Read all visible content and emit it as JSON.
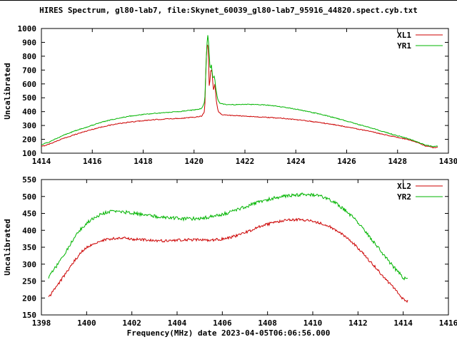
{
  "title": "HIRES Spectrum, gl80-lab7, file:Skynet_60039_gl80-lab7_95916_44820.spect.cyb.txt",
  "colors": {
    "axis_label": "#006600",
    "text": "#000000",
    "border": "#000000",
    "red_series": "#cc0000",
    "green_series": "#00b400"
  },
  "chart_data": [
    {
      "type": "line",
      "title": "",
      "xlabel": "",
      "ylabel": "Uncalibrated",
      "xlim": [
        1414,
        1430
      ],
      "ylim": [
        100,
        1000
      ],
      "xticks": [
        1414,
        1416,
        1418,
        1420,
        1422,
        1424,
        1426,
        1428,
        1430
      ],
      "yticks": [
        100,
        200,
        300,
        400,
        500,
        600,
        700,
        800,
        900,
        1000
      ],
      "grid": false,
      "legend_position": "top-right",
      "series": [
        {
          "name": "XL1",
          "color": "#cc0000",
          "noise": 3,
          "points": [
            [
              1414.0,
              148
            ],
            [
              1414.3,
              165
            ],
            [
              1414.7,
              195
            ],
            [
              1415.0,
              215
            ],
            [
              1415.5,
              245
            ],
            [
              1416.0,
              272
            ],
            [
              1416.5,
              295
            ],
            [
              1417.0,
              312
            ],
            [
              1417.5,
              325
            ],
            [
              1418.0,
              335
            ],
            [
              1418.5,
              342
            ],
            [
              1419.0,
              348
            ],
            [
              1419.5,
              352
            ],
            [
              1420.0,
              360
            ],
            [
              1420.3,
              368
            ],
            [
              1420.42,
              400
            ],
            [
              1420.47,
              760
            ],
            [
              1420.52,
              905
            ],
            [
              1420.56,
              850
            ],
            [
              1420.6,
              560
            ],
            [
              1420.65,
              690
            ],
            [
              1420.7,
              705
            ],
            [
              1420.76,
              555
            ],
            [
              1420.82,
              600
            ],
            [
              1420.88,
              470
            ],
            [
              1420.95,
              400
            ],
            [
              1421.1,
              378
            ],
            [
              1421.5,
              372
            ],
            [
              1422.0,
              368
            ],
            [
              1422.5,
              362
            ],
            [
              1423.0,
              357
            ],
            [
              1423.5,
              352
            ],
            [
              1424.0,
              342
            ],
            [
              1424.5,
              332
            ],
            [
              1425.0,
              320
            ],
            [
              1425.5,
              306
            ],
            [
              1426.0,
              290
            ],
            [
              1426.5,
              272
            ],
            [
              1427.0,
              254
            ],
            [
              1427.5,
              234
            ],
            [
              1428.0,
              214
            ],
            [
              1428.4,
              198
            ],
            [
              1428.8,
              175
            ],
            [
              1429.1,
              152
            ],
            [
              1429.4,
              140
            ],
            [
              1429.6,
              142
            ]
          ]
        },
        {
          "name": "YR1",
          "color": "#00b400",
          "noise": 3,
          "points": [
            [
              1414.0,
              162
            ],
            [
              1414.3,
              180
            ],
            [
              1414.7,
              215
            ],
            [
              1415.0,
              240
            ],
            [
              1415.5,
              272
            ],
            [
              1416.0,
              302
            ],
            [
              1416.5,
              330
            ],
            [
              1417.0,
              352
            ],
            [
              1417.5,
              368
            ],
            [
              1418.0,
              380
            ],
            [
              1418.5,
              388
            ],
            [
              1419.0,
              395
            ],
            [
              1419.5,
              402
            ],
            [
              1420.0,
              412
            ],
            [
              1420.3,
              422
            ],
            [
              1420.42,
              470
            ],
            [
              1420.5,
              870
            ],
            [
              1420.54,
              950
            ],
            [
              1420.58,
              880
            ],
            [
              1420.63,
              700
            ],
            [
              1420.68,
              740
            ],
            [
              1420.74,
              640
            ],
            [
              1420.8,
              660
            ],
            [
              1420.86,
              560
            ],
            [
              1420.93,
              490
            ],
            [
              1421.0,
              462
            ],
            [
              1421.2,
              452
            ],
            [
              1421.6,
              450
            ],
            [
              1422.0,
              452
            ],
            [
              1422.4,
              452
            ],
            [
              1422.8,
              448
            ],
            [
              1423.2,
              440
            ],
            [
              1423.6,
              430
            ],
            [
              1424.0,
              418
            ],
            [
              1424.5,
              400
            ],
            [
              1425.0,
              380
            ],
            [
              1425.5,
              357
            ],
            [
              1426.0,
              332
            ],
            [
              1426.5,
              306
            ],
            [
              1427.0,
              280
            ],
            [
              1427.5,
              252
            ],
            [
              1428.0,
              226
            ],
            [
              1428.4,
              206
            ],
            [
              1428.8,
              180
            ],
            [
              1429.1,
              158
            ],
            [
              1429.4,
              148
            ],
            [
              1429.6,
              152
            ]
          ]
        }
      ]
    },
    {
      "type": "line",
      "title": "",
      "xlabel": "Frequency(MHz) date 2023-04-05T06:06:56.000",
      "ylabel": "Uncalibrated",
      "xlim": [
        1398,
        1416
      ],
      "ylim": [
        150,
        550
      ],
      "xticks": [
        1398,
        1400,
        1402,
        1404,
        1406,
        1408,
        1410,
        1412,
        1414,
        1416
      ],
      "yticks": [
        150,
        200,
        250,
        300,
        350,
        400,
        450,
        500,
        550
      ],
      "grid": false,
      "legend_position": "top-right",
      "series": [
        {
          "name": "XL2",
          "color": "#cc0000",
          "noise": 4,
          "points": [
            [
              1398.3,
              200
            ],
            [
              1398.6,
              228
            ],
            [
              1399.0,
              265
            ],
            [
              1399.4,
              305
            ],
            [
              1399.8,
              338
            ],
            [
              1400.2,
              358
            ],
            [
              1400.6,
              369
            ],
            [
              1401.0,
              374
            ],
            [
              1401.4,
              377
            ],
            [
              1401.8,
              376
            ],
            [
              1402.2,
              373
            ],
            [
              1402.6,
              371
            ],
            [
              1403.0,
              369
            ],
            [
              1403.5,
              369
            ],
            [
              1404.0,
              371
            ],
            [
              1404.5,
              372
            ],
            [
              1405.0,
              372
            ],
            [
              1405.5,
              371
            ],
            [
              1406.0,
              374
            ],
            [
              1406.4,
              380
            ],
            [
              1406.8,
              388
            ],
            [
              1407.2,
              398
            ],
            [
              1407.6,
              409
            ],
            [
              1408.0,
              418
            ],
            [
              1408.4,
              425
            ],
            [
              1408.8,
              429
            ],
            [
              1409.2,
              431
            ],
            [
              1409.6,
              431
            ],
            [
              1410.0,
              427
            ],
            [
              1410.4,
              420
            ],
            [
              1410.8,
              409
            ],
            [
              1411.2,
              394
            ],
            [
              1411.6,
              374
            ],
            [
              1412.0,
              348
            ],
            [
              1412.4,
              318
            ],
            [
              1412.8,
              288
            ],
            [
              1413.2,
              258
            ],
            [
              1413.6,
              228
            ],
            [
              1414.0,
              196
            ],
            [
              1414.2,
              190
            ]
          ]
        },
        {
          "name": "YR2",
          "color": "#00b400",
          "noise": 5,
          "points": [
            [
              1398.3,
              258
            ],
            [
              1398.6,
              288
            ],
            [
              1399.0,
              328
            ],
            [
              1399.4,
              372
            ],
            [
              1399.8,
              408
            ],
            [
              1400.2,
              432
            ],
            [
              1400.6,
              447
            ],
            [
              1401.0,
              455
            ],
            [
              1401.3,
              457
            ],
            [
              1401.6,
              455
            ],
            [
              1402.0,
              451
            ],
            [
              1402.4,
              447
            ],
            [
              1402.8,
              443
            ],
            [
              1403.2,
              440
            ],
            [
              1403.6,
              437
            ],
            [
              1404.0,
              435
            ],
            [
              1404.4,
              434
            ],
            [
              1404.8,
              435
            ],
            [
              1405.2,
              437
            ],
            [
              1405.6,
              441
            ],
            [
              1406.0,
              447
            ],
            [
              1406.4,
              455
            ],
            [
              1406.8,
              464
            ],
            [
              1407.2,
              474
            ],
            [
              1407.6,
              483
            ],
            [
              1408.0,
              491
            ],
            [
              1408.4,
              497
            ],
            [
              1408.8,
              501
            ],
            [
              1409.2,
              504
            ],
            [
              1409.6,
              506
            ],
            [
              1410.0,
              505
            ],
            [
              1410.4,
              499
            ],
            [
              1410.8,
              488
            ],
            [
              1411.2,
              472
            ],
            [
              1411.6,
              450
            ],
            [
              1412.0,
              422
            ],
            [
              1412.4,
              390
            ],
            [
              1412.8,
              356
            ],
            [
              1413.2,
              322
            ],
            [
              1413.6,
              290
            ],
            [
              1414.0,
              260
            ],
            [
              1414.2,
              256
            ]
          ]
        }
      ]
    }
  ]
}
